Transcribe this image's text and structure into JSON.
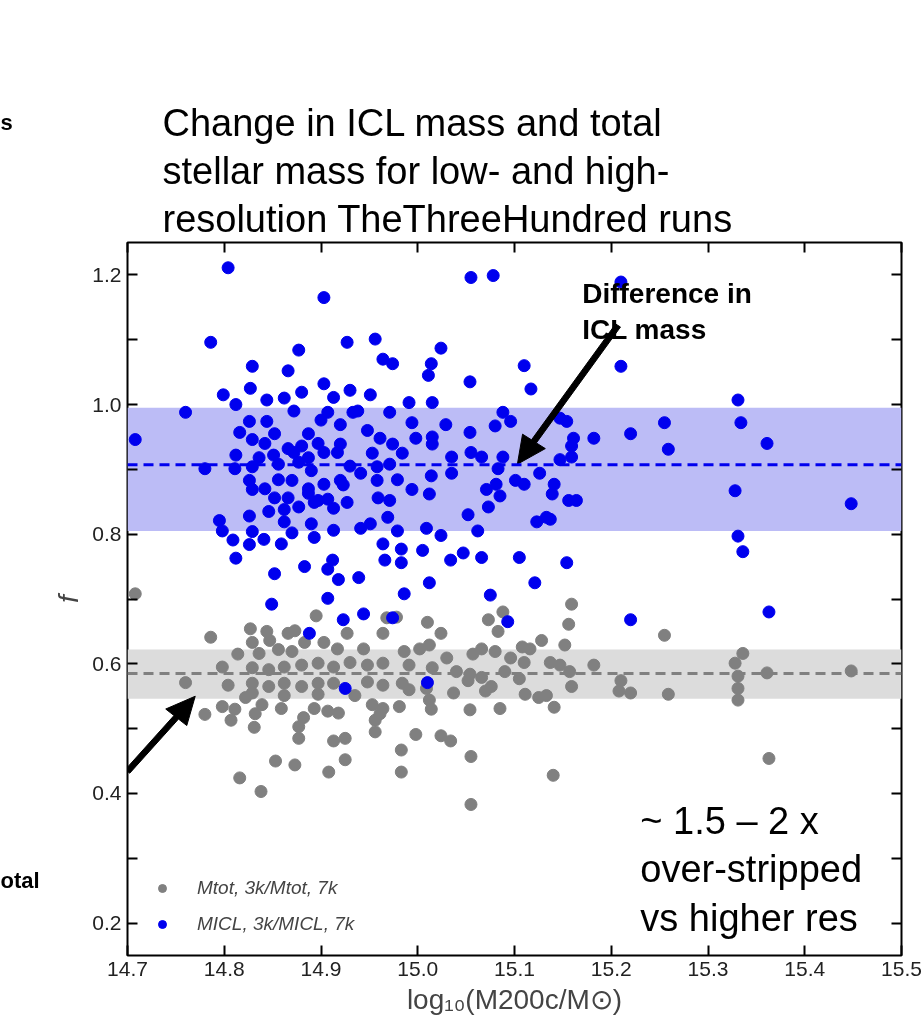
{
  "chart_data": {
    "type": "scatter",
    "title": "Change in ICL mass and total\nstellar mass for low- and high-\nresolution TheThreeHundred runs",
    "xlabel": "log₁₀(M200c/M⊙)",
    "ylabel": "f",
    "xlim": [
      14.7,
      15.5
    ],
    "ylim": [
      0.15,
      1.25
    ],
    "xticks": [
      14.7,
      14.8,
      14.9,
      {
        "value": 15.0,
        "label": "15.0"
      },
      15.1,
      15.2,
      15.3,
      15.4,
      15.5
    ],
    "yticks": [
      0.2,
      {
        "value": 0.3,
        "label": null
      },
      0.4,
      {
        "value": 0.5,
        "label": null
      },
      0.6,
      {
        "value": 0.7,
        "label": null
      },
      0.8,
      {
        "value": 0.9,
        "label": null
      },
      {
        "value": 1.0,
        "label": "1.0"
      },
      {
        "value": 1.1,
        "label": null
      },
      1.2
    ],
    "grid": false,
    "legend": "bottom left",
    "marker": "circle",
    "bands": [
      {
        "axis": "y",
        "from": 0.805,
        "to": 0.995,
        "color": "#bcbcf6"
      },
      {
        "axis": "y",
        "from": 0.546,
        "to": 0.622,
        "color": "#dcdcdc"
      }
    ],
    "ref_lines": [
      {
        "axis": "y",
        "value": 0.907,
        "color": "#0000ee",
        "line_style": "dashed"
      },
      {
        "axis": "y",
        "value": 0.585,
        "color": "#808080",
        "line_style": "dashed"
      }
    ],
    "annotations": [
      "Difference in\nICL mass",
      "otal",
      "~ 1.5 – 2 x\nover-stripped\nvs higher res",
      "s"
    ],
    "series": [
      {
        "name": "Mtot, 3k/Mtot, 7k",
        "color": "#808080",
        "x": [
          14.786,
          14.76,
          14.78,
          14.798,
          14.804,
          14.798,
          14.811,
          14.807,
          14.814,
          14.827,
          14.844,
          14.829,
          14.822,
          14.832,
          14.831,
          14.816,
          14.838,
          14.853,
          14.873,
          14.839,
          14.859,
          14.847,
          14.866,
          14.873,
          14.895,
          14.836,
          14.856,
          14.87,
          14.883,
          14.903,
          14.917,
          14.829,
          14.846,
          14.862,
          14.88,
          14.897,
          14.913,
          14.93,
          14.948,
          14.964,
          14.829,
          14.846,
          14.862,
          14.88,
          14.897,
          14.913,
          14.948,
          14.964,
          14.984,
          14.829,
          14.862,
          14.897,
          14.927,
          14.944,
          14.964,
          14.978,
          14.968,
          14.986,
          14.991,
          15.01,
          15.024,
          15.002,
          15.012,
          15.015,
          15.009,
          14.991,
          15.037,
          15.03,
          15.04,
          15.057,
          15.066,
          15.08,
          15.054,
          15.052,
          15.066,
          15.076,
          15.07,
          15.073,
          15.088,
          15.083,
          15.096,
          15.11,
          15.09,
          15.105,
          15.108,
          15.116,
          15.128,
          15.137,
          15.147,
          15.157,
          15.152,
          15.156,
          15.159,
          15.159,
          15.182,
          15.111,
          15.125,
          15.133,
          15.141,
          15.085,
          15.054,
          15.012,
          15.014,
          14.953,
          14.964,
          14.981,
          14.961,
          14.956,
          14.935,
          14.918,
          14.907,
          14.893,
          14.882,
          14.877,
          14.877,
          14.913,
          14.925,
          14.956,
          14.998,
          15.024,
          15.034,
          14.983,
          15.055,
          14.925,
          14.908,
          14.983,
          15.14,
          15.055,
          15.255,
          15.21,
          15.208,
          15.22,
          15.259,
          15.336,
          15.328,
          15.331,
          15.331,
          15.331,
          15.361,
          15.448,
          15.363,
          14.708
        ],
        "values": [
          0.641,
          0.571,
          0.522,
          0.595,
          0.567,
          0.534,
          0.53,
          0.513,
          0.615,
          0.654,
          0.65,
          0.633,
          0.548,
          0.523,
          0.502,
          0.424,
          0.403,
          0.45,
          0.444,
          0.537,
          0.531,
          0.636,
          0.647,
          0.651,
          0.674,
          0.616,
          0.622,
          0.619,
          0.633,
          0.633,
          0.623,
          0.594,
          0.591,
          0.595,
          0.598,
          0.601,
          0.595,
          0.602,
          0.598,
          0.601,
          0.57,
          0.565,
          0.57,
          0.565,
          0.57,
          0.57,
          0.572,
          0.567,
          0.57,
          0.555,
          0.551,
          0.553,
          0.647,
          0.623,
          0.647,
          0.672,
          0.671,
          0.619,
          0.598,
          0.664,
          0.647,
          0.623,
          0.629,
          0.594,
          0.562,
          0.56,
          0.555,
          0.609,
          0.588,
          0.615,
          0.623,
          0.619,
          0.584,
          0.574,
          0.579,
          0.565,
          0.558,
          0.668,
          0.68,
          0.65,
          0.609,
          0.602,
          0.588,
          0.577,
          0.626,
          0.623,
          0.636,
          0.602,
          0.598,
          0.588,
          0.629,
          0.661,
          0.692,
          0.565,
          0.598,
          0.553,
          0.548,
          0.551,
          0.533,
          0.531,
          0.529,
          0.544,
          0.53,
          0.537,
          0.531,
          0.534,
          0.523,
          0.513,
          0.551,
          0.524,
          0.527,
          0.531,
          0.517,
          0.503,
          0.485,
          0.481,
          0.485,
          0.495,
          0.491,
          0.489,
          0.481,
          0.467,
          0.457,
          0.452,
          0.433,
          0.433,
          0.428,
          0.383,
          0.644,
          0.574,
          0.558,
          0.555,
          0.553,
          0.616,
          0.601,
          0.581,
          0.562,
          0.544,
          0.586,
          0.589,
          0.454,
          0.708
        ]
      },
      {
        "name": "MICL, 3k/MICL, 7k",
        "color": "#0000ee",
        "x": [
          14.708,
          14.804,
          14.903,
          15.055,
          15.078,
          14.786,
          14.877,
          14.927,
          14.956,
          15.024,
          14.829,
          14.866,
          14.964,
          14.974,
          15.014,
          15.011,
          15.11,
          15.054,
          15.117,
          14.799,
          14.827,
          14.88,
          14.903,
          14.93,
          14.913,
          14.951,
          14.991,
          15.015,
          14.812,
          14.76,
          14.844,
          14.862,
          14.872,
          14.907,
          14.938,
          14.971,
          15.088,
          15.096,
          15.08,
          15.054,
          15.029,
          14.994,
          15.015,
          14.998,
          14.816,
          14.844,
          14.826,
          14.852,
          14.887,
          14.9,
          14.92,
          14.933,
          14.948,
          14.961,
          14.974,
          14.984,
          15.015,
          14.829,
          14.842,
          14.866,
          14.88,
          14.897,
          14.92,
          14.917,
          14.812,
          14.836,
          14.851,
          14.872,
          14.887,
          14.903,
          14.953,
          15.035,
          15.055,
          15.066,
          15.088,
          14.78,
          14.811,
          14.829,
          14.856,
          14.877,
          14.89,
          14.93,
          14.941,
          14.958,
          14.971,
          15.014,
          15.035,
          15.083,
          15.126,
          14.826,
          14.842,
          14.856,
          14.87,
          14.887,
          14.903,
          14.92,
          14.923,
          14.958,
          14.979,
          14.994,
          15.081,
          15.101,
          15.11,
          15.141,
          14.829,
          14.852,
          14.866,
          14.887,
          14.897,
          14.907,
          14.959,
          14.971,
          15.012,
          15.071,
          15.085,
          15.139,
          14.846,
          14.862,
          14.877,
          14.893,
          14.913,
          14.927,
          15.073,
          14.826,
          14.862,
          14.89,
          14.969,
          15.052,
          15.123,
          15.133,
          14.795,
          14.798,
          14.809,
          14.826,
          14.829,
          14.841,
          14.859,
          14.87,
          14.893,
          14.913,
          14.941,
          14.951,
          14.964,
          14.979,
          15.009,
          15.024,
          15.062,
          14.983,
          15.005,
          15.047,
          15.066,
          15.034,
          15.105,
          14.812,
          14.883,
          14.912,
          14.907,
          14.966,
          14.983,
          14.852,
          14.918,
          14.939,
          15.012,
          15.121,
          14.986,
          15.075,
          14.907,
          14.849,
          14.923,
          14.944,
          14.974,
          15.093,
          14.888,
          14.925,
          15.01,
          15.21,
          15.21,
          15.331,
          15.147,
          15.154,
          15.255,
          15.334,
          15.22,
          15.182,
          15.161,
          15.361,
          15.159,
          15.259,
          15.159,
          15.147,
          15.328,
          15.156,
          15.164,
          15.448,
          15.137,
          15.331,
          15.336,
          15.154,
          15.22,
          15.363
        ],
        "values": [
          0.946,
          1.211,
          1.165,
          1.196,
          1.199,
          1.096,
          1.084,
          1.096,
          1.101,
          1.087,
          1.059,
          1.052,
          1.07,
          1.063,
          1.063,
          1.045,
          1.06,
          1.035,
          1.024,
          1.015,
          1.025,
          1.019,
          1.032,
          1.022,
          1.011,
          1.015,
          1.003,
          1.003,
          1.0,
          0.988,
          1.007,
          1.01,
          0.99,
          0.988,
          0.99,
          0.988,
          0.988,
          0.974,
          0.967,
          0.957,
          0.969,
          0.972,
          0.95,
          0.948,
          0.957,
          0.974,
          0.974,
          0.955,
          0.955,
          0.976,
          0.969,
          0.988,
          0.96,
          0.948,
          0.939,
          0.925,
          0.939,
          0.946,
          0.94,
          0.932,
          0.936,
          0.94,
          0.939,
          0.926,
          0.922,
          0.918,
          0.922,
          0.926,
          0.918,
          0.926,
          0.925,
          0.919,
          0.926,
          0.919,
          0.919,
          0.901,
          0.901,
          0.904,
          0.908,
          0.911,
          0.898,
          0.905,
          0.894,
          0.904,
          0.908,
          0.89,
          0.894,
          0.901,
          0.894,
          0.883,
          0.87,
          0.884,
          0.883,
          0.87,
          0.877,
          0.883,
          0.876,
          0.883,
          0.884,
          0.869,
          0.877,
          0.883,
          0.877,
          0.877,
          0.869,
          0.856,
          0.856,
          0.863,
          0.852,
          0.854,
          0.856,
          0.852,
          0.862,
          0.869,
          0.859,
          0.862,
          0.835,
          0.838,
          0.842,
          0.849,
          0.84,
          0.849,
          0.842,
          0.828,
          0.819,
          0.816,
          0.826,
          0.83,
          0.819,
          0.826,
          0.821,
          0.805,
          0.791,
          0.784,
          0.804,
          0.792,
          0.785,
          0.802,
          0.795,
          0.806,
          0.809,
          0.816,
          0.785,
          0.805,
          0.809,
          0.798,
          0.805,
          0.777,
          0.775,
          0.771,
          0.764,
          0.76,
          0.764,
          0.763,
          0.75,
          0.76,
          0.746,
          0.76,
          0.756,
          0.739,
          0.73,
          0.733,
          0.725,
          0.725,
          0.708,
          0.706,
          0.701,
          0.692,
          0.668,
          0.677,
          0.671,
          0.665,
          0.647,
          0.562,
          0.571,
          1.189,
          1.059,
          1.007,
          0.979,
          0.974,
          0.972,
          0.972,
          0.955,
          0.948,
          0.948,
          0.94,
          0.936,
          0.931,
          0.919,
          0.915,
          0.867,
          0.852,
          0.852,
          0.847,
          0.823,
          0.797,
          0.773,
          0.756,
          0.668,
          0.68
        ]
      }
    ]
  }
}
